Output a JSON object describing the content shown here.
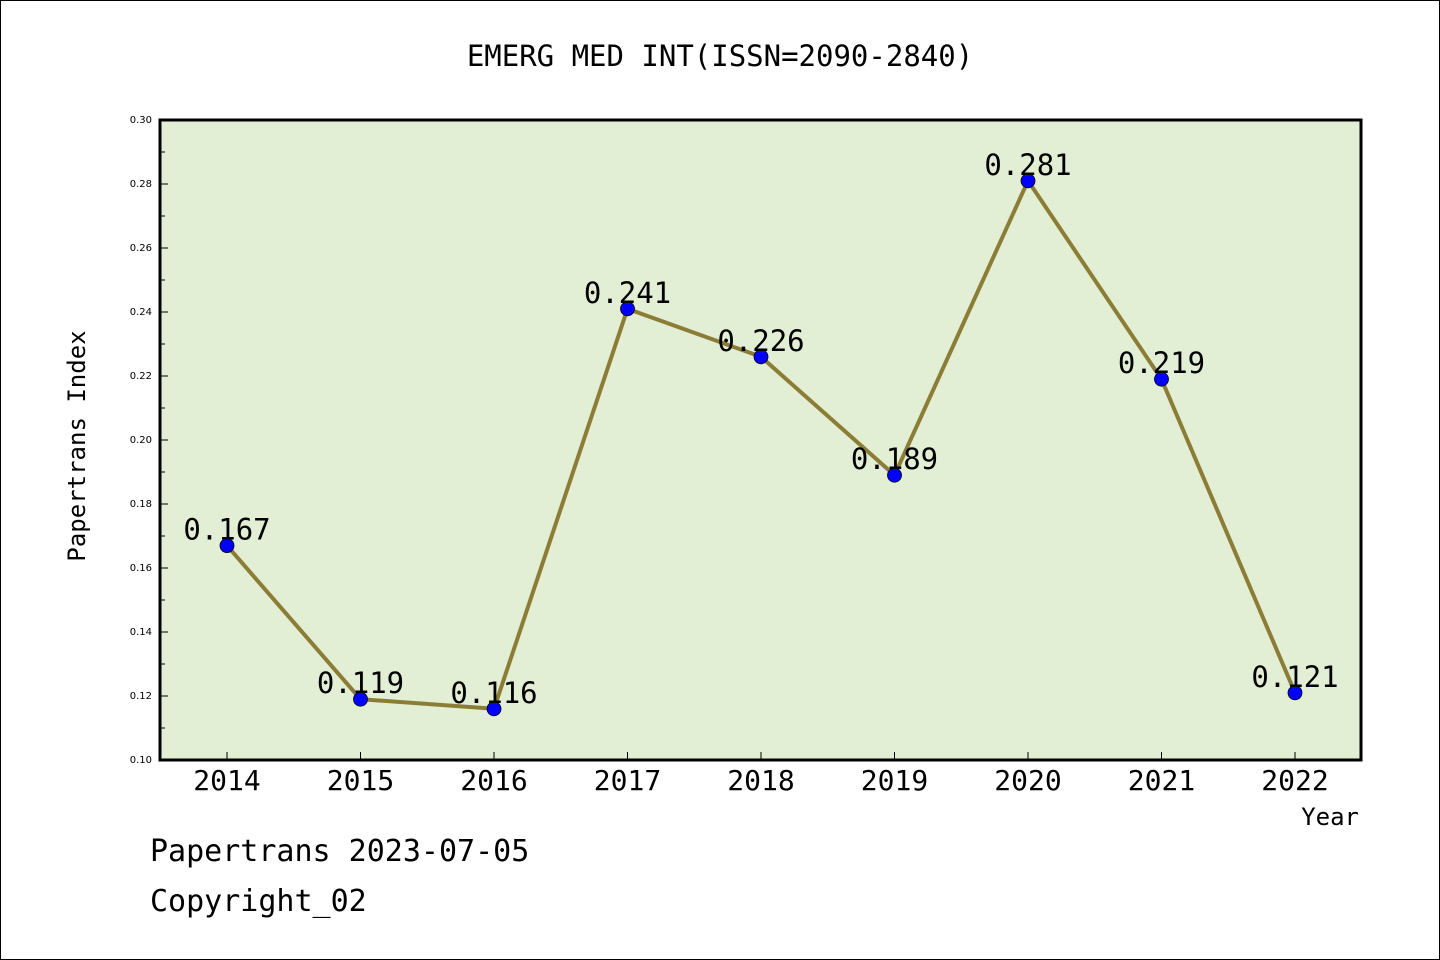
{
  "chart_data": {
    "type": "line",
    "title": "EMERG MED INT(ISSN=2090-2840)",
    "xlabel": "Year",
    "ylabel": "Papertrans Index",
    "categories": [
      "2014",
      "2015",
      "2016",
      "2017",
      "2018",
      "2019",
      "2020",
      "2021",
      "2022"
    ],
    "values": [
      0.167,
      0.119,
      0.116,
      0.241,
      0.226,
      0.189,
      0.281,
      0.219,
      0.121
    ],
    "data_labels": [
      "0.167",
      "0.119",
      "0.116",
      "0.241",
      "0.226",
      "0.189",
      "0.281",
      "0.219",
      "0.121"
    ],
    "ylim": [
      0.1,
      0.3
    ],
    "yticks": [
      "0.10",
      "0.12",
      "0.14",
      "0.16",
      "0.18",
      "0.20",
      "0.22",
      "0.24",
      "0.26",
      "0.28",
      "0.30"
    ],
    "grid": false,
    "colors": {
      "plot_background": "#e2efd5",
      "line": "#8b7d35",
      "marker": "#0000ff"
    }
  },
  "footer": {
    "line1": "Papertrans 2023-07-05",
    "line2": "Copyright_02"
  }
}
